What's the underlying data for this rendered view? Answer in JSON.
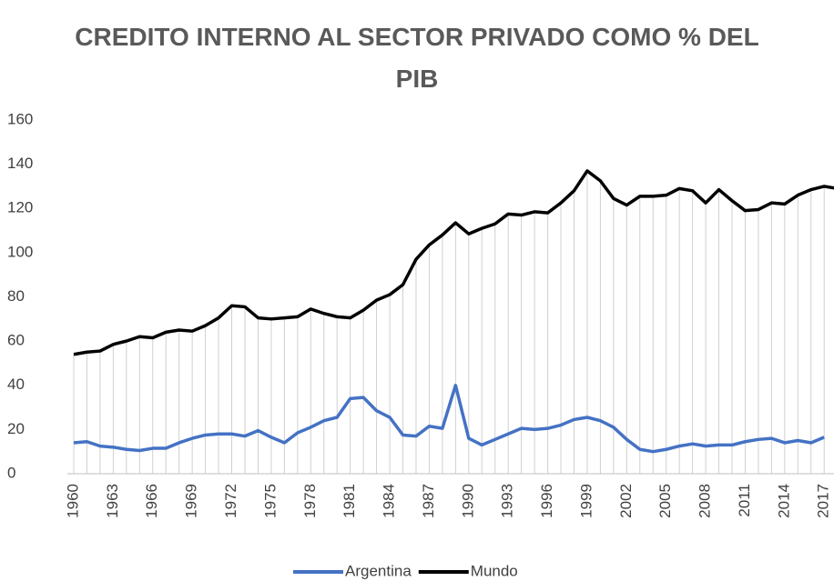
{
  "chart_data": {
    "type": "line",
    "title": "CREDITO INTERNO AL SECTOR PRIVADO COMO % DEL PIB",
    "categories": [
      "1960",
      null,
      null,
      "1963",
      null,
      null,
      "1966",
      null,
      null,
      "1969",
      null,
      null,
      "1972",
      null,
      null,
      "1975",
      null,
      null,
      "1978",
      null,
      null,
      "1981",
      null,
      null,
      "1984",
      null,
      null,
      "1987",
      null,
      null,
      "1990",
      null,
      null,
      "1993",
      null,
      null,
      "1996",
      null,
      null,
      "1999",
      null,
      null,
      "2002",
      null,
      null,
      "2005",
      null,
      null,
      "2008",
      null,
      null,
      "2011",
      null,
      null,
      "2014",
      null,
      null,
      "2017",
      null
    ],
    "series": [
      {
        "name": "Argentina",
        "color": "#4472c4",
        "values": [
          14,
          14.5,
          12.5,
          12,
          11,
          10.5,
          11.5,
          11.5,
          14,
          16,
          17.5,
          18,
          18,
          17,
          19.5,
          16.5,
          14,
          18.5,
          21,
          24,
          25.5,
          34,
          34.5,
          28.5,
          25.5,
          17.5,
          17,
          21.5,
          20.5,
          40,
          16,
          13,
          15.5,
          18,
          20.5,
          20,
          20.5,
          22,
          24.5,
          25.5,
          24,
          21,
          15.5,
          11,
          10,
          11,
          12.5,
          13.5,
          12.5,
          13,
          13,
          14.5,
          15.5,
          16,
          14,
          15,
          14,
          16.5,
          null
        ]
      },
      {
        "name": "Mundo",
        "color": "#000000",
        "values": [
          54,
          55,
          55.5,
          58.5,
          60,
          62,
          61.5,
          64,
          65,
          64.5,
          67,
          70.5,
          76,
          75.5,
          70.5,
          70,
          70.5,
          71,
          74.5,
          72.5,
          71,
          70.5,
          74,
          78.5,
          81,
          85.5,
          97,
          103.5,
          108,
          113.5,
          108.5,
          111,
          113,
          117.5,
          117,
          118.5,
          118,
          122.5,
          128,
          137,
          132.5,
          124.5,
          121.5,
          125.5,
          125.5,
          126,
          129,
          128,
          122.5,
          128.5,
          123.5,
          119,
          119.5,
          122.5,
          122,
          126,
          128.5,
          130,
          129
        ]
      }
    ],
    "ylim": [
      0,
      160
    ],
    "yticks": [
      0,
      20,
      40,
      60,
      80,
      100,
      120,
      140,
      160
    ],
    "drop_lines": true,
    "legend": "bottom"
  }
}
